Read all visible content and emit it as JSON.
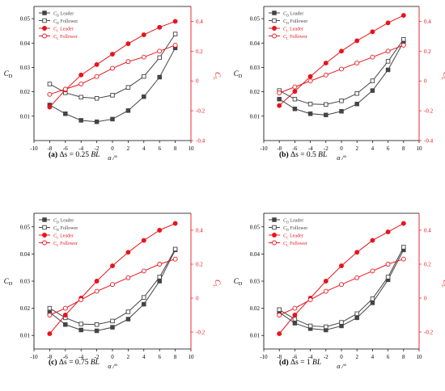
{
  "chart_data": [
    {
      "type": "line",
      "caption": {
        "label": "(a)",
        "text": "Δs = 0.25",
        "unit": "BL"
      },
      "x": [
        -8,
        -6,
        -4,
        -2,
        0,
        2,
        4,
        6,
        8
      ],
      "xlim": [
        -10,
        10
      ],
      "xticks": [
        -10,
        -8,
        -6,
        -4,
        -2,
        0,
        2,
        4,
        6,
        8,
        10
      ],
      "xlabel": "α /°",
      "ylabel_left": "C_D",
      "ylim_left": [
        0,
        0.055
      ],
      "yticks_left": [
        0.01,
        0.02,
        0.03,
        0.04,
        0.05
      ],
      "ylabel_right": "C_L",
      "ylim_right": [
        -0.4,
        0.5
      ],
      "yticks_right": [
        -0.4,
        -0.2,
        0,
        0.2,
        0.4
      ],
      "legend": {
        "position": "top-left",
        "entries": [
          "C_D Leader",
          "C_D Follower",
          "C_L Leader",
          "C_L Follower"
        ]
      },
      "series": [
        {
          "name": "C_D Leader",
          "axis": "left",
          "color": "#444444",
          "marker": "square-filled",
          "values": [
            0.0146,
            0.011,
            0.0083,
            0.0077,
            0.0088,
            0.0123,
            0.018,
            0.026,
            0.038
          ]
        },
        {
          "name": "C_D Follower",
          "axis": "left",
          "color": "#444444",
          "marker": "square-open",
          "values": [
            0.0232,
            0.0196,
            0.0178,
            0.0173,
            0.0186,
            0.0218,
            0.0263,
            0.034,
            0.0437
          ]
        },
        {
          "name": "C_L Leader",
          "axis": "right",
          "color": "#e8141c",
          "marker": "circle-filled",
          "values": [
            -0.175,
            -0.06,
            0.04,
            0.11,
            0.18,
            0.25,
            0.31,
            0.36,
            0.4
          ]
        },
        {
          "name": "C_L Follower",
          "axis": "right",
          "color": "#e8141c",
          "marker": "circle-open",
          "values": [
            -0.09,
            -0.055,
            -0.02,
            0.03,
            0.085,
            0.13,
            0.16,
            0.2,
            0.24
          ]
        }
      ]
    },
    {
      "type": "line",
      "caption": {
        "label": "(b)",
        "text": "Δs = 0.5",
        "unit": "BL"
      },
      "x": [
        -8,
        -6,
        -4,
        -2,
        0,
        2,
        4,
        6,
        8
      ],
      "xlim": [
        -10,
        10
      ],
      "xticks": [
        -10,
        -8,
        -6,
        -4,
        -2,
        0,
        2,
        4,
        6,
        8,
        10
      ],
      "xlabel": "α /°",
      "ylabel_left": "C_D",
      "ylim_left": [
        0,
        0.055
      ],
      "yticks_left": [
        0.01,
        0.02,
        0.03,
        0.04,
        0.05
      ],
      "ylabel_right": "C_L",
      "ylim_right": [
        -0.4,
        0.5
      ],
      "yticks_right": [
        -0.4,
        -0.2,
        0,
        0.2,
        0.4
      ],
      "legend": {
        "position": "top-left",
        "entries": [
          "C_D Leader",
          "C_D Follower",
          "C_L Leader",
          "C_L Follower"
        ]
      },
      "series": [
        {
          "name": "C_D Leader",
          "axis": "left",
          "color": "#444444",
          "marker": "square-filled",
          "values": [
            0.017,
            0.013,
            0.011,
            0.0105,
            0.012,
            0.015,
            0.0205,
            0.029,
            0.0405
          ]
        },
        {
          "name": "C_D Follower",
          "axis": "left",
          "color": "#444444",
          "marker": "square-open",
          "values": [
            0.0205,
            0.017,
            0.015,
            0.0148,
            0.0163,
            0.0193,
            0.0245,
            0.0325,
            0.0415
          ]
        },
        {
          "name": "C_L Leader",
          "axis": "right",
          "color": "#e8141c",
          "marker": "circle-filled",
          "values": [
            -0.165,
            -0.07,
            0.03,
            0.12,
            0.2,
            0.27,
            0.33,
            0.39,
            0.44
          ]
        },
        {
          "name": "C_L Follower",
          "axis": "right",
          "color": "#e8141c",
          "marker": "circle-open",
          "values": [
            -0.08,
            -0.04,
            0.0,
            0.04,
            0.08,
            0.12,
            0.16,
            0.2,
            0.24
          ]
        }
      ]
    },
    {
      "type": "line",
      "caption": {
        "label": "(c)",
        "text": "Δs = 0.75",
        "unit": "BL"
      },
      "x": [
        -8,
        -6,
        -4,
        -2,
        0,
        2,
        4,
        6,
        8
      ],
      "xlim": [
        -10,
        10
      ],
      "xticks": [
        -10,
        -8,
        -6,
        -4,
        -2,
        0,
        2,
        4,
        6,
        8,
        10
      ],
      "xlabel": "α /°",
      "ylabel_left": "C_D",
      "ylim_left": [
        0.005,
        0.055
      ],
      "yticks_left": [
        0.01,
        0.02,
        0.03,
        0.04,
        0.05
      ],
      "ylabel_right": "C_L",
      "ylim_right": [
        -0.3,
        0.5
      ],
      "yticks_right": [
        -0.2,
        0,
        0.2,
        0.4
      ],
      "legend": {
        "position": "top-left",
        "entries": [
          "C_D Leader",
          "C_D Follower",
          "C_L Leader",
          "C_L Follower"
        ]
      },
      "series": [
        {
          "name": "C_D Leader",
          "axis": "left",
          "color": "#444444",
          "marker": "square-filled",
          "values": [
            0.0185,
            0.014,
            0.012,
            0.0117,
            0.013,
            0.016,
            0.0215,
            0.03,
            0.0415
          ]
        },
        {
          "name": "C_D Follower",
          "axis": "left",
          "color": "#444444",
          "marker": "square-open",
          "values": [
            0.02,
            0.0165,
            0.0142,
            0.014,
            0.0153,
            0.0187,
            0.024,
            0.0315,
            0.0418
          ]
        },
        {
          "name": "C_L Leader",
          "axis": "right",
          "color": "#e8141c",
          "marker": "circle-filled",
          "values": [
            -0.21,
            -0.1,
            0.0,
            0.1,
            0.19,
            0.27,
            0.34,
            0.4,
            0.44
          ]
        },
        {
          "name": "C_L Follower",
          "axis": "right",
          "color": "#e8141c",
          "marker": "circle-open",
          "values": [
            -0.1,
            -0.06,
            -0.01,
            0.04,
            0.08,
            0.12,
            0.16,
            0.2,
            0.23
          ]
        }
      ]
    },
    {
      "type": "line",
      "caption": {
        "label": "(d)",
        "text": "Δs = 1",
        "unit": "BL"
      },
      "x": [
        -8,
        -6,
        -4,
        -2,
        0,
        2,
        4,
        6,
        8
      ],
      "xlim": [
        -10,
        10
      ],
      "xticks": [
        -10,
        -8,
        -6,
        -4,
        -2,
        0,
        2,
        4,
        6,
        8,
        10
      ],
      "xlabel": "α /°",
      "ylabel_left": "C_D",
      "ylim_left": [
        0.005,
        0.055
      ],
      "yticks_left": [
        0.01,
        0.02,
        0.03,
        0.04,
        0.05
      ],
      "ylabel_right": "C_L",
      "ylim_right": [
        -0.3,
        0.5
      ],
      "yticks_right": [
        -0.2,
        0,
        0.2,
        0.4
      ],
      "legend": {
        "position": "top-left",
        "entries": [
          "C_D Leader",
          "C_D Follower",
          "C_L Leader",
          "C_L Follower"
        ]
      },
      "series": [
        {
          "name": "C_D Leader",
          "axis": "left",
          "color": "#444444",
          "marker": "square-filled",
          "values": [
            0.0185,
            0.0145,
            0.0125,
            0.012,
            0.0135,
            0.0165,
            0.022,
            0.0305,
            0.0415
          ]
        },
        {
          "name": "C_D Follower",
          "axis": "left",
          "color": "#444444",
          "marker": "square-open",
          "values": [
            0.0195,
            0.016,
            0.0135,
            0.0132,
            0.0148,
            0.018,
            0.0235,
            0.0315,
            0.0425
          ]
        },
        {
          "name": "C_L Leader",
          "axis": "right",
          "color": "#e8141c",
          "marker": "circle-filled",
          "values": [
            -0.21,
            -0.1,
            0.0,
            0.1,
            0.19,
            0.27,
            0.34,
            0.39,
            0.44
          ]
        },
        {
          "name": "C_L Follower",
          "axis": "right",
          "color": "#e8141c",
          "marker": "circle-open",
          "values": [
            -0.1,
            -0.06,
            -0.01,
            0.04,
            0.08,
            0.12,
            0.16,
            0.2,
            0.23
          ]
        }
      ]
    }
  ]
}
